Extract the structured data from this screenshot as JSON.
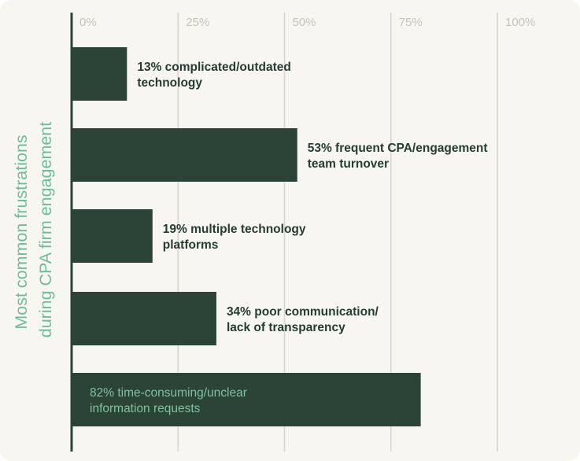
{
  "chart_data": {
    "type": "bar",
    "orientation": "horizontal",
    "ylabel": [
      "Most common frustrations",
      "during CPA firm engagement"
    ],
    "xlim": [
      0,
      100
    ],
    "ticks": [
      "0%",
      "25%",
      "50%",
      "75%",
      "100%"
    ],
    "grid": true,
    "categories": [
      "complicated/outdated technology",
      "frequent CPA/engagement team turnover",
      "multiple technology platforms",
      "poor communication/ lack of transparency",
      "time-consuming/unclear information requests"
    ],
    "values": [
      13,
      53,
      19,
      34,
      82
    ],
    "labels": [
      [
        "13% complicated/outdated",
        "technology"
      ],
      [
        "53% frequent CPA/engagement",
        "team turnover"
      ],
      [
        "19% multiple technology",
        "platforms"
      ],
      [
        "34% poor communication/",
        "lack of transparency"
      ],
      [
        "82% time-consuming/unclear",
        "information requests"
      ]
    ],
    "colors": {
      "bar": "#2b4435",
      "axis": "#2b4435",
      "grid": "#d9d6cf",
      "tick_text": "#c6c3bb",
      "label_text": "#243d30",
      "inside_label_text": "#7cc3a0",
      "ylabel": "#6dbe96"
    }
  }
}
